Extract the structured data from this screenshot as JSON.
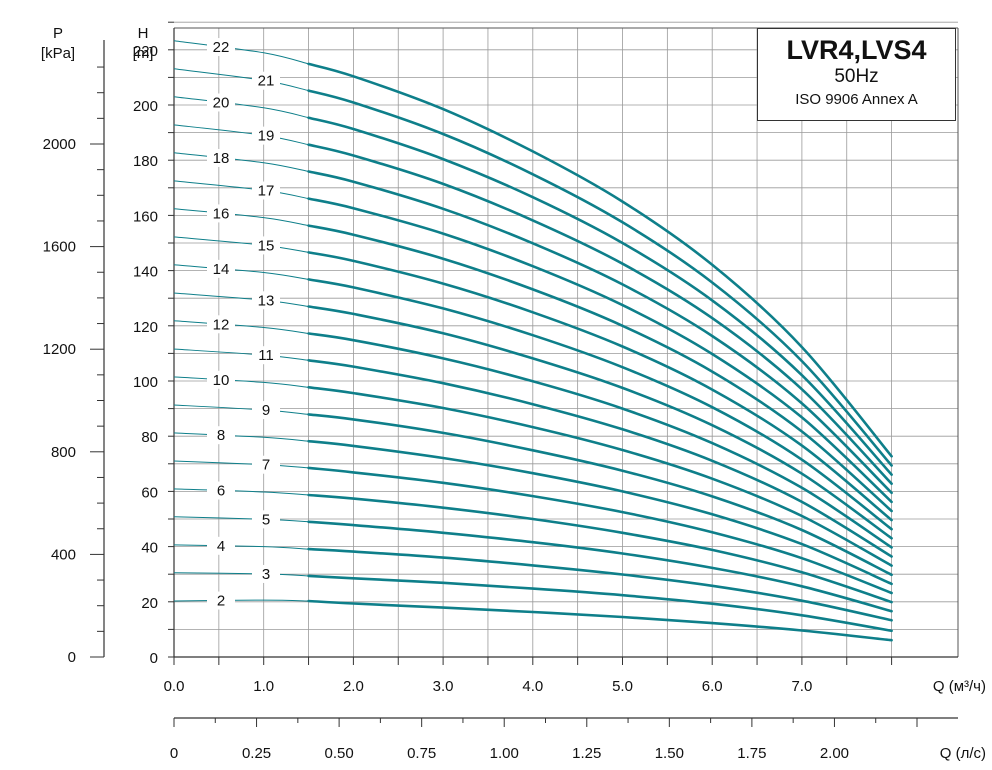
{
  "chart_data": {
    "type": "line",
    "title": "LVR4,LVS4",
    "subtitle": "50Hz",
    "standard": "ISO 9906 Annex A",
    "left_axis": {
      "label_top": "P",
      "label_unit": "[kPa]",
      "ticks": [
        0,
        400,
        800,
        1200,
        1600,
        2000
      ]
    },
    "y_axis": {
      "label_top": "H",
      "label_unit": "[m]",
      "ticks": [
        0,
        20,
        40,
        60,
        80,
        100,
        120,
        140,
        160,
        180,
        200,
        220
      ],
      "ylim": [
        0,
        230
      ]
    },
    "x_axis": {
      "label": "Q (м³/ч)",
      "ticks": [
        "0.0",
        "1.0",
        "2.0",
        "3.0",
        "4.0",
        "5.0",
        "6.0",
        "7.0"
      ],
      "xlim": [
        0,
        8.4
      ]
    },
    "x_axis_secondary": {
      "label": "Q (л/с)",
      "ticks": [
        "0",
        "0.25",
        "0.50",
        "0.75",
        "1.00",
        "1.25",
        "1.50",
        "1.75",
        "2.00"
      ]
    },
    "grid": true,
    "color": "#0e7f8a",
    "thin_range_q": [
      0,
      1.5
    ],
    "thick_range_q": [
      1.5,
      8.0
    ],
    "x": [
      0,
      1.0,
      1.5,
      2.0,
      3.0,
      4.0,
      5.0,
      6.0,
      7.0,
      8.0
    ],
    "series": [
      {
        "name": "2",
        "values": [
          20.3,
          20.6,
          20.3,
          19.4,
          17.9,
          16.3,
          14.5,
          12.3,
          9.6,
          6.1
        ]
      },
      {
        "name": "3",
        "values": [
          30.5,
          30.1,
          29.4,
          28.5,
          26.9,
          24.8,
          22.4,
          19.3,
          15.1,
          9.5
        ]
      },
      {
        "name": "4",
        "values": [
          40.6,
          40.0,
          39.1,
          38.2,
          36.0,
          33.2,
          29.9,
          25.8,
          20.4,
          13.3
        ]
      },
      {
        "name": "5",
        "values": [
          50.8,
          49.9,
          49.0,
          47.8,
          45.0,
          41.6,
          37.5,
          32.3,
          25.6,
          16.6
        ]
      },
      {
        "name": "6",
        "values": [
          60.9,
          59.8,
          58.7,
          57.4,
          54.1,
          50.0,
          45.0,
          38.8,
          30.7,
          19.9
        ]
      },
      {
        "name": "7",
        "values": [
          71.0,
          69.7,
          68.5,
          66.9,
          63.1,
          58.3,
          52.5,
          45.2,
          35.8,
          23.2
        ]
      },
      {
        "name": "8",
        "values": [
          81.2,
          79.6,
          78.2,
          76.5,
          72.1,
          66.6,
          60.0,
          51.7,
          40.9,
          26.5
        ]
      },
      {
        "name": "9",
        "values": [
          91.3,
          89.5,
          87.9,
          86.1,
          81.2,
          74.9,
          67.5,
          58.2,
          46.0,
          29.8
        ]
      },
      {
        "name": "10",
        "values": [
          101.5,
          99.5,
          97.7,
          95.6,
          90.2,
          83.3,
          75.0,
          64.6,
          51.1,
          33.1
        ]
      },
      {
        "name": "11",
        "values": [
          111.6,
          109.4,
          107.5,
          105.2,
          99.2,
          91.6,
          82.5,
          71.1,
          56.2,
          36.4
        ]
      },
      {
        "name": "12",
        "values": [
          121.8,
          119.4,
          117.2,
          114.8,
          108.2,
          99.9,
          90.0,
          77.5,
          61.3,
          39.7
        ]
      },
      {
        "name": "13",
        "values": [
          131.9,
          129.3,
          127.0,
          124.3,
          117.3,
          108.2,
          97.5,
          84.0,
          66.4,
          43.0
        ]
      },
      {
        "name": "14",
        "values": [
          142.1,
          139.3,
          136.8,
          133.9,
          126.3,
          116.6,
          105.0,
          90.5,
          71.5,
          46.3
        ]
      },
      {
        "name": "15",
        "values": [
          152.2,
          149.2,
          146.6,
          143.5,
          135.3,
          124.9,
          112.5,
          96.9,
          76.6,
          49.6
        ]
      },
      {
        "name": "16",
        "values": [
          162.4,
          159.2,
          156.3,
          153.0,
          144.3,
          133.2,
          120.0,
          103.4,
          81.7,
          52.9
        ]
      },
      {
        "name": "17",
        "values": [
          172.5,
          169.1,
          166.1,
          162.6,
          153.4,
          141.6,
          127.5,
          109.8,
          86.8,
          56.2
        ]
      },
      {
        "name": "18",
        "values": [
          182.7,
          179.1,
          175.9,
          172.2,
          162.4,
          149.9,
          135.0,
          116.3,
          91.9,
          59.5
        ]
      },
      {
        "name": "19",
        "values": [
          192.8,
          189.0,
          185.6,
          181.7,
          171.4,
          158.2,
          142.5,
          122.8,
          97.0,
          62.8
        ]
      },
      {
        "name": "20",
        "values": [
          203.0,
          199.0,
          195.4,
          191.3,
          180.4,
          166.6,
          150.0,
          129.2,
          102.1,
          66.1
        ]
      },
      {
        "name": "21",
        "values": [
          213.1,
          208.9,
          205.2,
          200.9,
          189.5,
          174.9,
          157.5,
          135.7,
          107.2,
          69.4
        ]
      },
      {
        "name": "22",
        "values": [
          223.3,
          218.9,
          214.9,
          210.4,
          198.5,
          183.2,
          165.0,
          142.1,
          112.3,
          72.7
        ]
      }
    ]
  }
}
